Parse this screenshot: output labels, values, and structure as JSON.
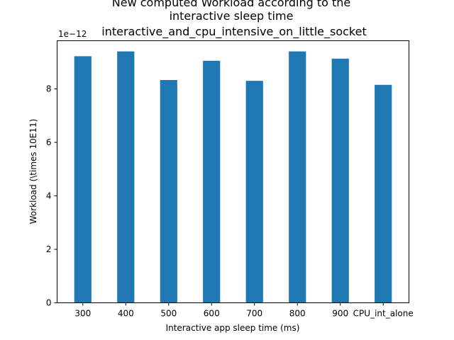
{
  "chart_data": {
    "type": "bar",
    "title_lines": [
      "New computed Workload according to the",
      "interactive sleep time",
      "interactive_and_cpu_intensive_on_little_socket"
    ],
    "xlabel": "Interactive app sleep time (ms)",
    "ylabel": "Workload (\\times 10E11)",
    "y_offset_label": "1e−12",
    "categories": [
      "300",
      "400",
      "500",
      "600",
      "700",
      "800",
      "900",
      "CPU_int_alone"
    ],
    "values": [
      9.22,
      9.4,
      8.33,
      9.05,
      8.3,
      9.4,
      9.13,
      8.15
    ],
    "ylim": [
      0,
      9.8
    ],
    "yticks": [
      0,
      2,
      4,
      6,
      8
    ],
    "bar_color": "#1f77b4",
    "grid": false,
    "legend": "none"
  }
}
